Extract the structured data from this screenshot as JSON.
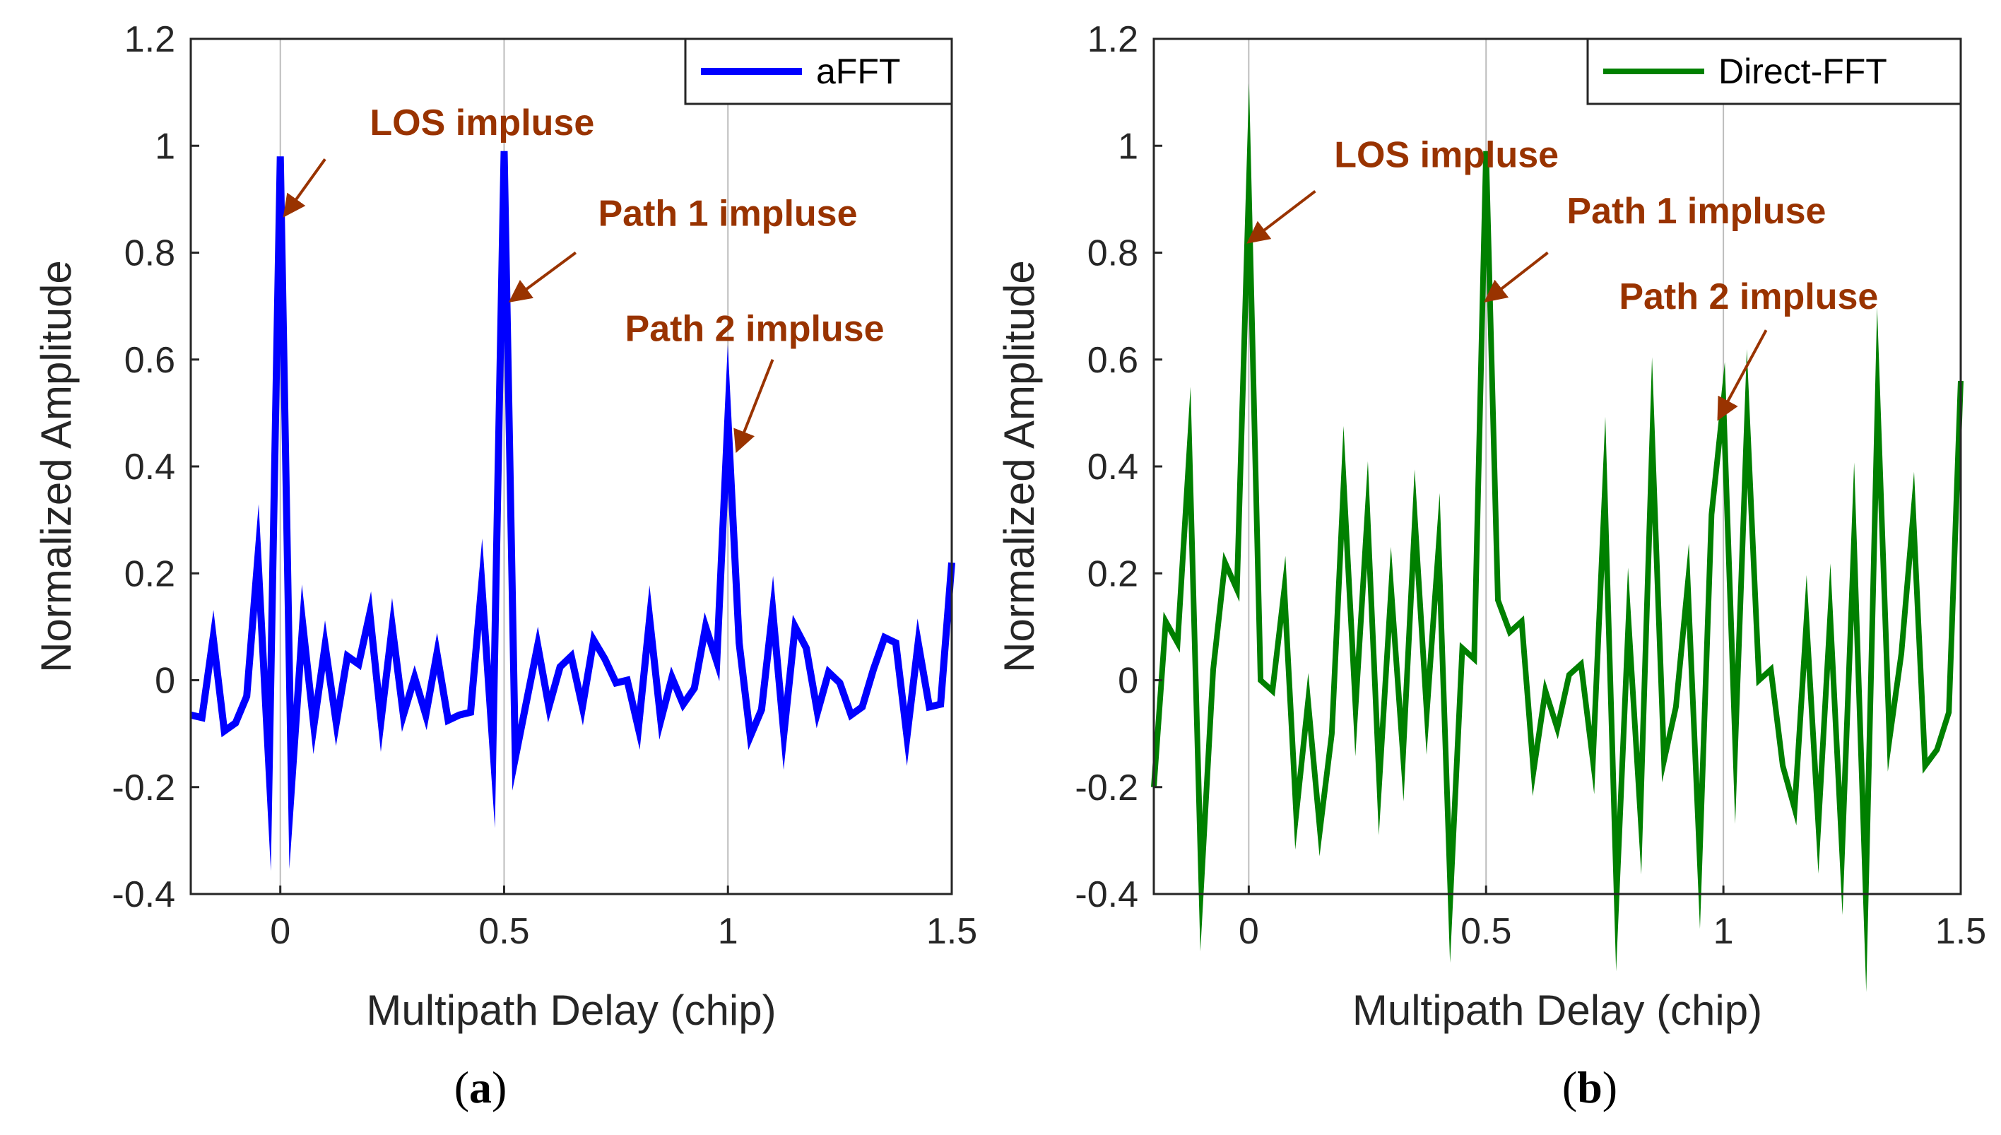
{
  "chart_data": [
    {
      "panel": "a",
      "type": "line",
      "caption": "a",
      "xlabel": "Multipath Delay (chip)",
      "ylabel": "Normalized Amplitude",
      "xlim": [
        -0.2,
        1.5
      ],
      "ylim": [
        -0.4,
        1.2
      ],
      "xticks": [
        0,
        0.5,
        1,
        1.5
      ],
      "xtick_labels": [
        "0",
        "0.5",
        "1",
        "1.5"
      ],
      "yticks": [
        -0.4,
        -0.2,
        0,
        0.2,
        0.4,
        0.6,
        0.8,
        1,
        1.2
      ],
      "ytick_labels": [
        "-0.4",
        "-0.2",
        "0",
        "0.2",
        "0.4",
        "0.6",
        "0.8",
        "1",
        "1.2"
      ],
      "grid": "x-only",
      "legend": {
        "position": "top-right",
        "label": "aFFT"
      },
      "series": [
        {
          "name": "aFFT",
          "color": "#0000ff",
          "points": [
            [
              -0.2,
              -0.065
            ],
            [
              -0.175,
              -0.07
            ],
            [
              -0.15,
              0.08
            ],
            [
              -0.125,
              -0.095
            ],
            [
              -0.1,
              -0.08
            ],
            [
              -0.075,
              -0.03
            ],
            [
              -0.05,
              0.23
            ],
            [
              -0.025,
              -0.17
            ],
            [
              0.0,
              0.98
            ],
            [
              0.025,
              -0.2
            ],
            [
              0.05,
              0.105
            ],
            [
              0.075,
              -0.085
            ],
            [
              0.1,
              0.065
            ],
            [
              0.125,
              -0.08
            ],
            [
              0.15,
              0.045
            ],
            [
              0.175,
              0.03
            ],
            [
              0.2,
              0.125
            ],
            [
              0.225,
              -0.075
            ],
            [
              0.25,
              0.1
            ],
            [
              0.275,
              -0.065
            ],
            [
              0.3,
              0.005
            ],
            [
              0.325,
              -0.065
            ],
            [
              0.35,
              0.05
            ],
            [
              0.375,
              -0.075
            ],
            [
              0.4,
              -0.065
            ],
            [
              0.425,
              -0.06
            ],
            [
              0.45,
              0.18
            ],
            [
              0.475,
              -0.125
            ],
            [
              0.5,
              0.99
            ],
            [
              0.525,
              -0.145
            ],
            [
              0.55,
              -0.04
            ],
            [
              0.575,
              0.065
            ],
            [
              0.6,
              -0.05
            ],
            [
              0.625,
              0.025
            ],
            [
              0.65,
              0.045
            ],
            [
              0.675,
              -0.05
            ],
            [
              0.7,
              0.075
            ],
            [
              0.725,
              0.04
            ],
            [
              0.75,
              -0.005
            ],
            [
              0.775,
              0.0
            ],
            [
              0.8,
              -0.09
            ],
            [
              0.825,
              0.115
            ],
            [
              0.85,
              -0.075
            ],
            [
              0.875,
              0.005
            ],
            [
              0.9,
              -0.045
            ],
            [
              0.925,
              -0.015
            ],
            [
              0.95,
              0.1
            ],
            [
              0.975,
              0.035
            ],
            [
              1.0,
              0.49
            ],
            [
              1.025,
              0.07
            ],
            [
              1.05,
              -0.105
            ],
            [
              1.075,
              -0.055
            ],
            [
              1.1,
              0.13
            ],
            [
              1.125,
              -0.1
            ],
            [
              1.15,
              0.1
            ],
            [
              1.175,
              0.06
            ],
            [
              1.2,
              -0.06
            ],
            [
              1.225,
              0.015
            ],
            [
              1.25,
              -0.005
            ],
            [
              1.275,
              -0.065
            ],
            [
              1.3,
              -0.05
            ],
            [
              1.325,
              0.02
            ],
            [
              1.35,
              0.08
            ],
            [
              1.375,
              0.07
            ],
            [
              1.4,
              -0.105
            ],
            [
              1.425,
              0.07
            ],
            [
              1.45,
              -0.05
            ],
            [
              1.475,
              -0.045
            ],
            [
              1.5,
              0.22
            ]
          ]
        }
      ],
      "annotations": [
        {
          "text": "LOS impluse",
          "text_at": [
            0.2,
            1.02
          ],
          "arrow_from": [
            0.1,
            0.975
          ],
          "arrow_to": [
            0.01,
            0.87
          ]
        },
        {
          "text": "Path 1 impluse",
          "text_at": [
            0.71,
            0.85
          ],
          "arrow_from": [
            0.66,
            0.8
          ],
          "arrow_to": [
            0.515,
            0.71
          ]
        },
        {
          "text": "Path 2 impluse",
          "text_at": [
            0.77,
            0.635
          ],
          "arrow_from": [
            1.1,
            0.6
          ],
          "arrow_to": [
            1.02,
            0.43
          ]
        }
      ],
      "annotation_color": "#993300"
    },
    {
      "panel": "b",
      "type": "line",
      "caption": "b",
      "xlabel": "Multipath Delay (chip)",
      "ylabel": "Normalized Amplitude",
      "xlim": [
        -0.2,
        1.5
      ],
      "ylim": [
        -0.4,
        1.2
      ],
      "xticks": [
        0,
        0.5,
        1,
        1.5
      ],
      "xtick_labels": [
        "0",
        "0.5",
        "1",
        "1.5"
      ],
      "yticks": [
        -0.4,
        -0.2,
        0,
        0.2,
        0.4,
        0.6,
        0.8,
        1,
        1.2
      ],
      "ytick_labels": [
        "-0.4",
        "-0.2",
        "0",
        "0.2",
        "0.4",
        "0.6",
        "0.8",
        "1",
        "1.2"
      ],
      "grid": "x-only",
      "legend": {
        "position": "top-right",
        "label": "Direct-FFT"
      },
      "series": [
        {
          "name": "Direct-FFT",
          "color": "#008000",
          "points": [
            [
              -0.2,
              -0.2
            ],
            [
              -0.175,
              0.11
            ],
            [
              -0.15,
              0.07
            ],
            [
              -0.125,
              0.43
            ],
            [
              -0.1,
              -0.38
            ],
            [
              -0.075,
              0.02
            ],
            [
              -0.05,
              0.22
            ],
            [
              -0.025,
              0.17
            ],
            [
              0.0,
              0.92
            ],
            [
              0.025,
              0.0
            ],
            [
              0.05,
              -0.02
            ],
            [
              0.075,
              0.17
            ],
            [
              0.1,
              -0.25
            ],
            [
              0.125,
              -0.04
            ],
            [
              0.15,
              -0.28
            ],
            [
              0.175,
              -0.1
            ],
            [
              0.2,
              0.37
            ],
            [
              0.225,
              -0.05
            ],
            [
              0.25,
              0.31
            ],
            [
              0.275,
              -0.19
            ],
            [
              0.3,
              0.17
            ],
            [
              0.325,
              -0.14
            ],
            [
              0.35,
              0.3
            ],
            [
              0.375,
              -0.06
            ],
            [
              0.4,
              0.25
            ],
            [
              0.425,
              -0.4
            ],
            [
              0.45,
              0.06
            ],
            [
              0.475,
              0.04
            ],
            [
              0.5,
              0.99
            ],
            [
              0.525,
              0.15
            ],
            [
              0.55,
              0.09
            ],
            [
              0.575,
              0.11
            ],
            [
              0.6,
              -0.17
            ],
            [
              0.625,
              -0.02
            ],
            [
              0.65,
              -0.09
            ],
            [
              0.675,
              0.01
            ],
            [
              0.7,
              0.03
            ],
            [
              0.725,
              -0.15
            ],
            [
              0.75,
              0.35
            ],
            [
              0.775,
              -0.4
            ],
            [
              0.8,
              0.11
            ],
            [
              0.825,
              -0.25
            ],
            [
              0.85,
              0.45
            ],
            [
              0.875,
              -0.15
            ],
            [
              0.9,
              -0.05
            ],
            [
              0.925,
              0.18
            ],
            [
              0.95,
              -0.33
            ],
            [
              0.975,
              0.31
            ],
            [
              1.0,
              0.52
            ],
            [
              1.025,
              -0.12
            ],
            [
              1.05,
              0.49
            ],
            [
              1.075,
              0.0
            ],
            [
              1.1,
              0.02
            ],
            [
              1.125,
              -0.16
            ],
            [
              1.15,
              -0.24
            ],
            [
              1.175,
              0.11
            ],
            [
              1.2,
              -0.27
            ],
            [
              1.225,
              0.12
            ],
            [
              1.25,
              -0.32
            ],
            [
              1.275,
              0.26
            ],
            [
              1.3,
              -0.4
            ],
            [
              1.325,
              0.52
            ],
            [
              1.35,
              -0.11
            ],
            [
              1.375,
              0.05
            ],
            [
              1.4,
              0.31
            ],
            [
              1.425,
              -0.16
            ],
            [
              1.45,
              -0.13
            ],
            [
              1.475,
              -0.06
            ],
            [
              1.5,
              0.56
            ]
          ]
        }
      ],
      "annotations": [
        {
          "text": "LOS impluse",
          "text_at": [
            0.18,
            0.96
          ],
          "arrow_from": [
            0.14,
            0.915
          ],
          "arrow_to": [
            0.0,
            0.82
          ]
        },
        {
          "text": "Path 1 impluse",
          "text_at": [
            0.67,
            0.855
          ],
          "arrow_from": [
            0.63,
            0.8
          ],
          "arrow_to": [
            0.5,
            0.71
          ]
        },
        {
          "text": "Path 2 impluse",
          "text_at": [
            0.78,
            0.695
          ],
          "arrow_from": [
            1.09,
            0.655
          ],
          "arrow_to": [
            0.99,
            0.49
          ]
        }
      ],
      "annotation_color": "#993300"
    }
  ]
}
